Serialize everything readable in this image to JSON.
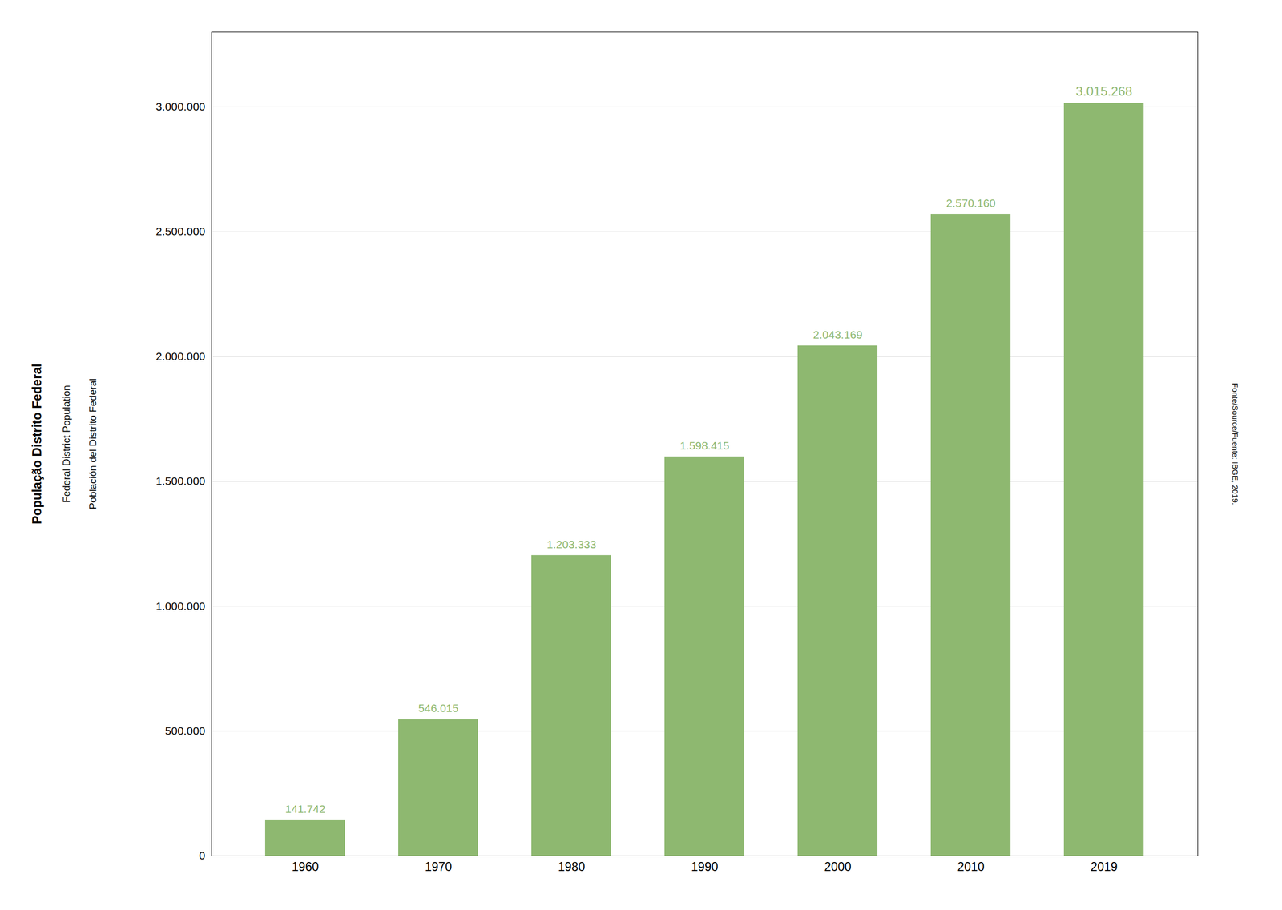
{
  "chart_data": {
    "type": "bar",
    "ylabel": [
      "População Distrito Federal",
      "Federal District Population",
      "Población del Distrito Federal"
    ],
    "annotations": [
      "Fonte/Source/Fuente: IBGE, 2019."
    ],
    "categories": [
      "1960",
      "1970",
      "1980",
      "1990",
      "2000",
      "2010",
      "2019"
    ],
    "values": [
      141742,
      546015,
      1203333,
      1598415,
      2043169,
      2570160,
      3015268
    ],
    "value_labels": [
      "141.742",
      "546.015",
      "1.203.333",
      "1.598.415",
      "2.043.169",
      "2.570.160",
      "3.015.268"
    ],
    "color": "#8eb870",
    "ylim": [
      0,
      3300000
    ],
    "yticks": [
      0,
      {
        "value": 500000,
        "label": "500.000"
      },
      {
        "value": 1000000,
        "label": "1.000.000"
      },
      {
        "value": 1500000,
        "label": "1.500.000"
      },
      {
        "value": 2000000,
        "label": "2.000.000"
      },
      {
        "value": 2500000,
        "label": "2.500.000"
      },
      {
        "value": 3000000,
        "label": "3.000.000"
      }
    ],
    "grid": true,
    "data_labels": true
  }
}
